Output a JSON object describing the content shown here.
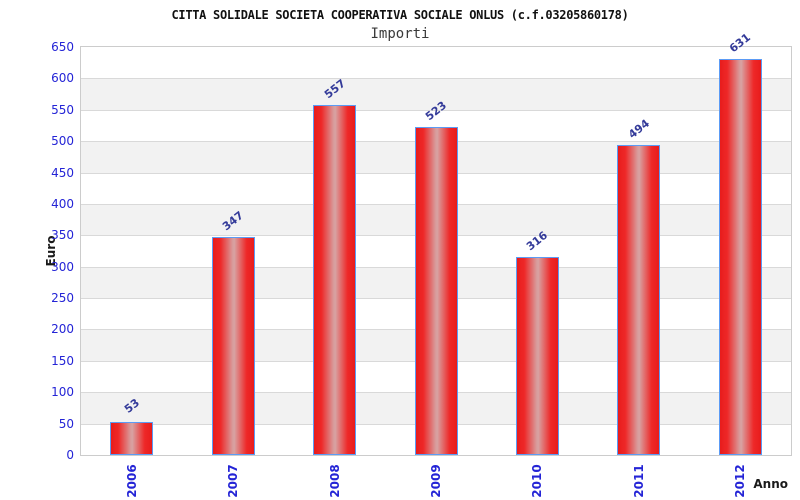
{
  "chart_data": {
    "type": "bar",
    "title": "CITTA SOLIDALE SOCIETA COOPERATIVA SOCIALE ONLUS (c.f.03205860178)",
    "subtitle": "Importi",
    "xlabel": "Anno",
    "ylabel": "Euro",
    "categories": [
      "2006",
      "2007",
      "2008",
      "2009",
      "2010",
      "2011",
      "2012"
    ],
    "values": [
      53,
      347,
      557,
      523,
      316,
      494,
      631
    ],
    "value_labels": [
      "53",
      "347",
      "557",
      "523",
      "316",
      "494",
      "631"
    ],
    "ylim": [
      0,
      650
    ],
    "y_ticks": [
      0,
      50,
      100,
      150,
      200,
      250,
      300,
      350,
      400,
      450,
      500,
      550,
      600,
      650
    ],
    "grid": "horizontal alternating bands every 50, light gridlines",
    "legend": "none",
    "colors": {
      "bar_edge": "#e81c1c",
      "bar_center_highlight": "#d89c9c",
      "bar_border": "#5b9bf5",
      "axis_tick_label": "#2424d6",
      "value_label": "#333a99",
      "band_fill": "#f2f2f2",
      "grid_line": "#d9d9d9",
      "plot_border": "#cccccc",
      "title_color": "#111111",
      "subtitle_color": "#3a3a3a"
    }
  }
}
